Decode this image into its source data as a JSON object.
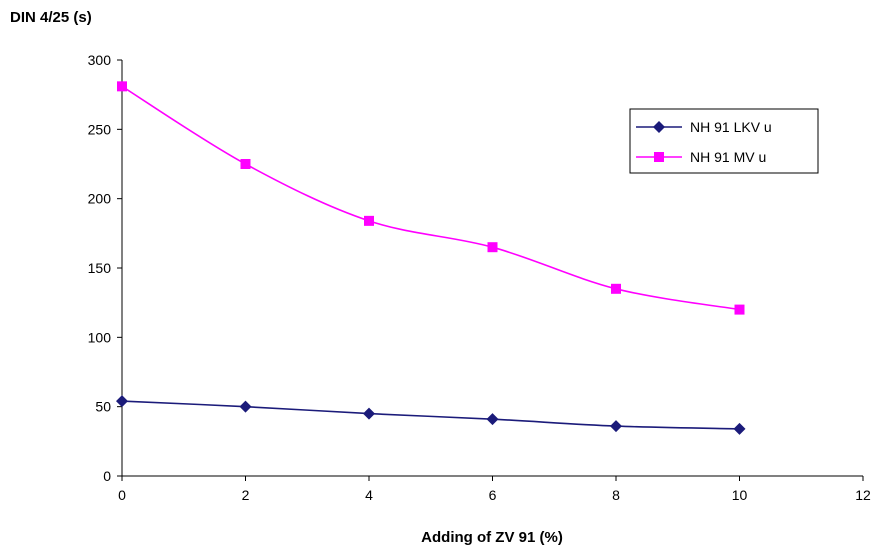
{
  "chart_data": {
    "type": "line",
    "ylabel": "DIN 4/25 (s)",
    "xlabel": "Adding of ZV 91 (%)",
    "xlim": [
      0,
      12
    ],
    "ylim": [
      0,
      300
    ],
    "xticks": [
      0,
      2,
      4,
      6,
      8,
      10,
      12
    ],
    "yticks": [
      0,
      50,
      100,
      150,
      200,
      250,
      300
    ],
    "grid": false,
    "legend_position": "top-right",
    "x": [
      0,
      2,
      4,
      6,
      8,
      10
    ],
    "series": [
      {
        "name": "NH 91 LKV u",
        "color": "#1b1b7a",
        "marker": "diamond",
        "values": [
          54,
          50,
          45,
          41,
          36,
          34
        ]
      },
      {
        "name": "NH 91 MV u",
        "color": "#ff00ff",
        "marker": "square",
        "values": [
          281,
          225,
          184,
          165,
          135,
          120
        ]
      }
    ]
  }
}
